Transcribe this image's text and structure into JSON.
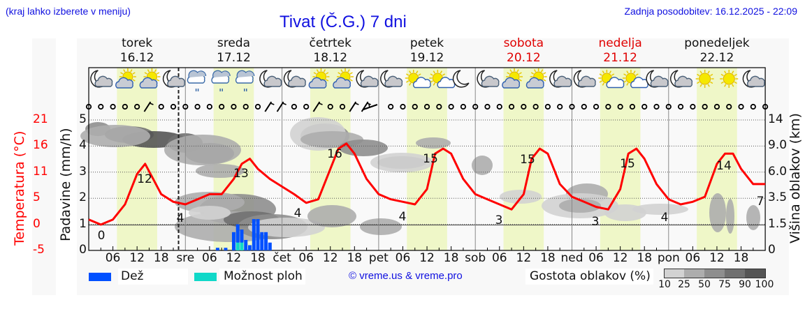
{
  "header": {
    "region_hint": "(kraj lahko izberete v meniju)",
    "title": "Tivat (Č.G.) 7 dni",
    "last_update": "Zadnja posodobitev: 16.12.2025 - 22:09"
  },
  "days": [
    {
      "name": "torek",
      "date": "16.12",
      "weekend": false
    },
    {
      "name": "sreda",
      "date": "17.12",
      "weekend": false
    },
    {
      "name": "četrtek",
      "date": "18.12",
      "weekend": false
    },
    {
      "name": "petek",
      "date": "19.12",
      "weekend": false
    },
    {
      "name": "sobota",
      "date": "20.12",
      "weekend": true
    },
    {
      "name": "nedelja",
      "date": "21.12",
      "weekend": true
    },
    {
      "name": "ponedeljek",
      "date": "22.12",
      "weekend": false
    }
  ],
  "axes": {
    "temp_title": "Temperatura (°C)",
    "precip_title": "Padavine (mm/h)",
    "cloud_title": "Višina oblakov (km)",
    "temp_ticks": [
      "21",
      "16",
      "11",
      "5",
      "0",
      "-5"
    ],
    "precip_ticks": [
      "5",
      "4",
      "3",
      "2",
      "1",
      "0"
    ],
    "cloud_ticks": [
      "14",
      "9.0",
      "6.0",
      "3.5",
      "1.5",
      "0"
    ],
    "x_ticks": [
      "06",
      "12",
      "18",
      "sre",
      "06",
      "12",
      "18",
      "čet",
      "06",
      "12",
      "18",
      "pet",
      "06",
      "12",
      "18",
      "sob",
      "06",
      "12",
      "18",
      "ned",
      "06",
      "12",
      "18",
      "pon",
      "06",
      "12",
      "18"
    ]
  },
  "legend": {
    "rain": "Dež",
    "showers": "Možnost ploh",
    "copyright": "© vreme.us & vreme.pro",
    "cloud_density_title": "Gostota oblakov (%)",
    "cloud_density_ticks": [
      "10",
      "25",
      "50",
      "75",
      "90",
      "100"
    ]
  },
  "colors": {
    "temperature": "#ff0000",
    "rain": "#0050ff",
    "showers": "#10d8c8",
    "daylight": "#eff7c8",
    "header_blue": "#1010e0",
    "weekend_red": "#e00000"
  },
  "weather_icons": [
    "moon-cloud",
    "sun-cloud",
    "sun-cloud",
    "moon-cloud",
    "rain-cloud",
    "rain-cloud",
    "rain-cloud",
    "moon-cloud",
    "moon-cloud",
    "sun-cloud",
    "sun-cloud",
    "moon-cloud",
    "moon-cloud",
    "sun-small-cloud",
    "sun-small-cloud",
    "moon",
    "moon-cloud",
    "sun-cloud",
    "sun-cloud",
    "moon-cloud",
    "moon-cloud",
    "sun-small-cloud",
    "sun-small-cloud",
    "moon-cloud",
    "moon-cloud",
    "sun",
    "sun",
    "moon-cloud"
  ],
  "chart_data": {
    "type": "line",
    "title": "Tivat (Č.G.) 7 dni",
    "xlabel": "",
    "x_range": [
      "16.12 00:00",
      "23.12 00:00"
    ],
    "series": [
      {
        "name": "Temperatura (°C)",
        "axis": "left-temp",
        "x_hours": [
          0,
          3,
          6,
          9,
          12,
          14,
          16,
          18,
          21,
          24,
          27,
          30,
          33,
          36,
          38,
          40,
          42,
          45,
          48,
          51,
          54,
          57,
          60,
          62,
          64,
          66,
          69,
          72,
          75,
          78,
          81,
          84,
          86,
          88,
          90,
          93,
          96,
          99,
          102,
          105,
          108,
          110,
          112,
          114,
          117,
          120,
          123,
          126,
          129,
          132,
          134,
          136,
          138,
          141,
          144,
          147,
          150,
          153,
          156,
          158,
          160,
          162,
          165,
          168
        ],
        "values": [
          1,
          0,
          1,
          4,
          10,
          12,
          9,
          6,
          4.5,
          4,
          5,
          6,
          6,
          9,
          12,
          13,
          11,
          9,
          7.5,
          6,
          4.3,
          5,
          11,
          15,
          16,
          14,
          9,
          6,
          5,
          4.5,
          4,
          7,
          14,
          15,
          14,
          9,
          6,
          5,
          4,
          3,
          6,
          13,
          15,
          14,
          8,
          5.5,
          4.5,
          3.5,
          3,
          7,
          14,
          15,
          13,
          8,
          5,
          4,
          4.5,
          5.5,
          12,
          14,
          14,
          11,
          8,
          8
        ]
      },
      {
        "name": "Dež (mm/h)",
        "axis": "left-precip",
        "type": "bar",
        "x_hours": [
          32,
          34,
          36,
          37,
          38,
          39,
          40,
          41,
          42,
          43,
          44,
          45
        ],
        "values": [
          0.1,
          0.1,
          0.7,
          1.0,
          0.8,
          0.4,
          0.2,
          1.2,
          1.2,
          0.7,
          0.7,
          0.3
        ]
      },
      {
        "name": "Možnost ploh",
        "axis": "left-precip",
        "type": "bar",
        "x_hours": [
          37,
          38
        ],
        "values": [
          0.3,
          0.3
        ]
      }
    ],
    "temp_annotations": [
      {
        "label": "0",
        "hour": 3
      },
      {
        "label": "12",
        "hour": 14
      },
      {
        "label": "4",
        "hour": 24.5
      },
      {
        "label": "13",
        "hour": 40
      },
      {
        "label": "4",
        "hour": 72.5
      },
      {
        "label": "16",
        "hour": 86
      },
      {
        "label": "4",
        "hour": 108
      },
      {
        "label": "15",
        "hour": 109.5
      },
      {
        "label": "3",
        "hour": 131.5
      },
      {
        "label": "15",
        "hour": 133
      },
      {
        "label": "3",
        "hour": 155
      },
      {
        "label": "15",
        "hour": 156
      },
      {
        "label": "4",
        "hour": 180
      },
      {
        "label": "14",
        "hour": 180.5
      },
      {
        "label": "7",
        "hour": 167.5
      }
    ],
    "ylim_temp": [
      -5,
      21
    ],
    "ylim_precip": [
      0,
      5
    ],
    "cloud_height_ticks_km": [
      0,
      1.5,
      3.5,
      6.0,
      9.0,
      14
    ],
    "grid": true,
    "legend_position": "bottom"
  }
}
